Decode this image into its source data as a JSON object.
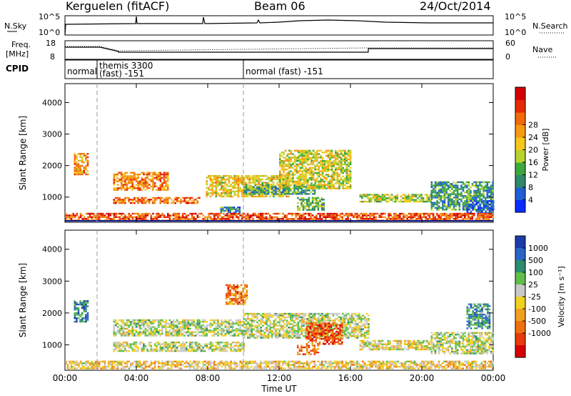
{
  "header": {
    "station": "Kerguelen (fitACF)",
    "beam": "Beam 06",
    "date": "24/Oct/2014"
  },
  "nsky_panel": {
    "label": "N.Sky",
    "right_label": "N.Search",
    "left_ticks": [
      "10^5",
      "10^0"
    ],
    "right_ticks": [
      "10^5",
      "10^0"
    ]
  },
  "freq_panel": {
    "label_line1": "Freq.",
    "label_line2": "[MHz]",
    "right_label": "Nave",
    "left_ticks": [
      "18",
      "8"
    ],
    "right_ticks": [
      "60",
      "0"
    ]
  },
  "cpid_panel": {
    "label": "CPID",
    "modes": [
      {
        "start": 0,
        "end": 1.8,
        "line1": "normal",
        "line2": ""
      },
      {
        "start": 1.8,
        "end": 10.0,
        "line1": "themis 3300",
        "line2": "(fast) -151"
      },
      {
        "start": 10.0,
        "end": 24.0,
        "line1": "normal (fast) -151",
        "line2": ""
      }
    ]
  },
  "chart_data": [
    {
      "type": "heatmap",
      "title": "",
      "xlabel": "Time UT",
      "ylabel": "Slant Range [km]",
      "xlim": [
        0,
        24
      ],
      "ylim": [
        200,
        4600
      ],
      "x_ticks": [
        0,
        4,
        8,
        12,
        16,
        20,
        24
      ],
      "x_tick_labels": [
        "00:00",
        "04:00",
        "08:00",
        "12:00",
        "16:00",
        "20:00",
        "00:00"
      ],
      "y_ticks": [
        1000,
        2000,
        3000,
        4000
      ],
      "y_tick_labels": [
        "1000",
        "2000",
        "3000",
        "4000"
      ],
      "colorbar": {
        "label": "Power [dB]",
        "ticks": [
          "4",
          "8",
          "12",
          "16",
          "20",
          "24",
          "28"
        ],
        "colors": [
          "#0a2cff",
          "#1f5fd6",
          "#2f8a6a",
          "#3ea83c",
          "#b9d22c",
          "#f5c71a",
          "#f59a12",
          "#f26a0a",
          "#e52b06",
          "#d40000"
        ]
      },
      "regions": [
        {
          "t0": 0.5,
          "t1": 1.3,
          "r0": 1700,
          "r1": 2400,
          "level": 0.35
        },
        {
          "t0": 2.7,
          "t1": 5.8,
          "r0": 1250,
          "r1": 1800,
          "level": 0.3
        },
        {
          "t0": 2.7,
          "t1": 7.5,
          "r0": 800,
          "r1": 1000,
          "level": 0.25
        },
        {
          "t0": 7.9,
          "t1": 12.5,
          "r0": 1000,
          "r1": 1700,
          "level": 0.45
        },
        {
          "t0": 8.7,
          "t1": 9.8,
          "r0": 450,
          "r1": 700,
          "level": 0.75
        },
        {
          "t0": 10.0,
          "t1": 14.0,
          "r0": 1100,
          "r1": 1400,
          "level": 0.7
        },
        {
          "t0": 12.0,
          "t1": 16.0,
          "r0": 1300,
          "r1": 2500,
          "level": 0.5
        },
        {
          "t0": 13.0,
          "t1": 14.5,
          "r0": 600,
          "r1": 1000,
          "level": 0.65
        },
        {
          "t0": 16.5,
          "t1": 20.5,
          "r0": 850,
          "r1": 1100,
          "level": 0.55
        },
        {
          "t0": 20.5,
          "t1": 24.0,
          "r0": 600,
          "r1": 1500,
          "level": 0.7
        },
        {
          "t0": 22.5,
          "t1": 24.0,
          "r0": 500,
          "r1": 900,
          "level": 0.9
        },
        {
          "t0": 0.0,
          "t1": 24.0,
          "r0": 250,
          "r1": 500,
          "level": 0.2
        }
      ]
    },
    {
      "type": "heatmap",
      "title": "",
      "xlabel": "Time UT",
      "ylabel": "Slant Range [km]",
      "xlim": [
        0,
        24
      ],
      "ylim": [
        200,
        4600
      ],
      "x_ticks": [
        0,
        4,
        8,
        12,
        16,
        20,
        24
      ],
      "x_tick_labels": [
        "00:00",
        "04:00",
        "08:00",
        "12:00",
        "16:00",
        "20:00",
        "00:00"
      ],
      "y_ticks": [
        1000,
        2000,
        3000,
        4000
      ],
      "y_tick_labels": [
        "1000",
        "2000",
        "3000",
        "4000"
      ],
      "colorbar": {
        "label": "Velocity [m s⁻¹]",
        "ticks": [
          "1000",
          "500",
          "100",
          "25",
          "-25",
          "-100",
          "-500",
          "-1000"
        ],
        "colors": [
          "#1a3ca8",
          "#2a66c8",
          "#2e8c6e",
          "#5fbf4a",
          "#c8c8c8",
          "#f0d020",
          "#f0a020",
          "#f07010",
          "#e83a0a",
          "#d80000"
        ]
      },
      "regions": [
        {
          "t0": 0.5,
          "t1": 1.3,
          "r0": 1700,
          "r1": 2400,
          "level": 0.2
        },
        {
          "t0": 2.7,
          "t1": 10.0,
          "r0": 1300,
          "r1": 1800,
          "level": 0.45
        },
        {
          "t0": 2.7,
          "t1": 10.0,
          "r0": 800,
          "r1": 1100,
          "level": 0.45
        },
        {
          "t0": 9.0,
          "t1": 10.2,
          "r0": 2300,
          "r1": 2900,
          "level": 0.75
        },
        {
          "t0": 10.0,
          "t1": 17.0,
          "r0": 1200,
          "r1": 2000,
          "level": 0.45
        },
        {
          "t0": 13.5,
          "t1": 15.5,
          "r0": 1000,
          "r1": 1700,
          "level": 0.8
        },
        {
          "t0": 13.0,
          "t1": 14.2,
          "r0": 700,
          "r1": 1000,
          "level": 0.75
        },
        {
          "t0": 16.5,
          "t1": 20.5,
          "r0": 850,
          "r1": 1150,
          "level": 0.5
        },
        {
          "t0": 20.5,
          "t1": 24.0,
          "r0": 700,
          "r1": 1400,
          "level": 0.45
        },
        {
          "t0": 22.5,
          "t1": 23.8,
          "r0": 1500,
          "r1": 2300,
          "level": 0.25
        },
        {
          "t0": 0.0,
          "t1": 24.0,
          "r0": 250,
          "r1": 500,
          "level": 0.55
        }
      ]
    }
  ]
}
